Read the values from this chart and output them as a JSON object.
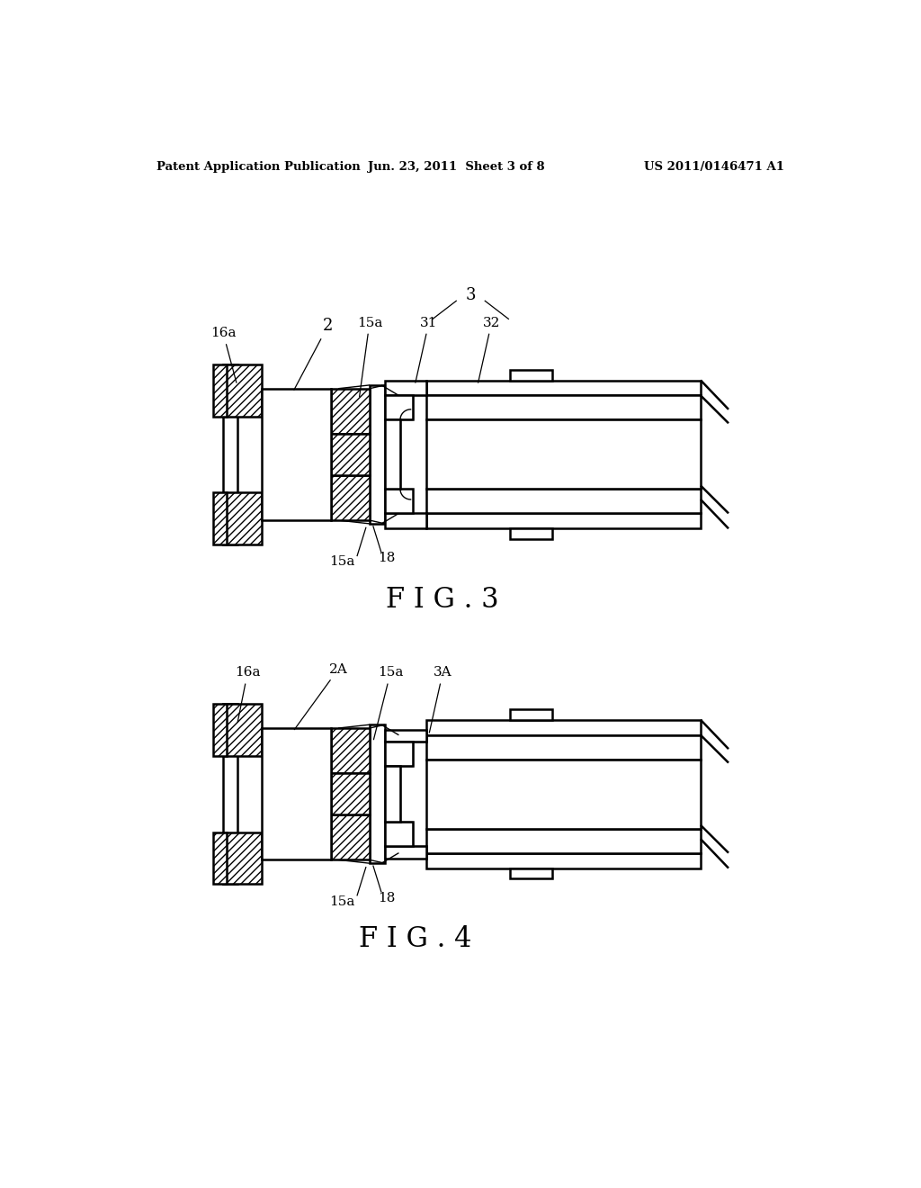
{
  "background_color": "#ffffff",
  "header_left": "Patent Application Publication",
  "header_center": "Jun. 23, 2011  Sheet 3 of 8",
  "header_right": "US 2011/0146471 A1",
  "fig3_label": "F I G . 3",
  "fig4_label": "F I G . 4",
  "lw": 1.8,
  "thin_lw": 1.0,
  "hatch_lw": 0.6
}
